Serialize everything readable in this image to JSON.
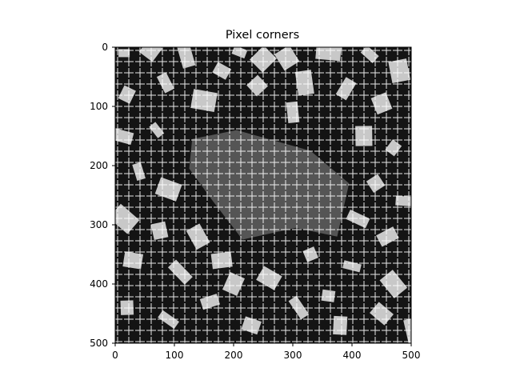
{
  "chart_data": {
    "type": "image",
    "title": "Pixel corners",
    "xlabel": "",
    "ylabel": "",
    "xlim": [
      0,
      500
    ],
    "ylim": [
      500,
      0
    ],
    "y_inverted": true,
    "x_ticks": [
      0,
      100,
      200,
      300,
      400,
      500
    ],
    "y_ticks": [
      0,
      100,
      200,
      300,
      400,
      500
    ],
    "x_tick_labels": [
      "0",
      "100",
      "200",
      "300",
      "400",
      "500"
    ],
    "y_tick_labels": [
      "0",
      "100",
      "200",
      "300",
      "400",
      "500"
    ],
    "grid": false,
    "legend": "none",
    "colors": {
      "background_light": "#c8c8c8",
      "background_dark": "#141414",
      "center_region": "#555555",
      "corner_marks": "#ffffff",
      "axes": "#000000"
    },
    "dark_region_polygon": [
      [
        130,
        155
      ],
      [
        205,
        140
      ],
      [
        330,
        175
      ],
      [
        395,
        230
      ],
      [
        375,
        320
      ],
      [
        305,
        305
      ],
      [
        215,
        325
      ],
      [
        165,
        260
      ],
      [
        125,
        205
      ]
    ],
    "patches": [
      [
        15,
        10
      ],
      [
        60,
        5
      ],
      [
        120,
        15
      ],
      [
        210,
        8
      ],
      [
        290,
        18
      ],
      [
        360,
        10
      ],
      [
        430,
        12
      ],
      [
        480,
        40
      ],
      [
        20,
        80
      ],
      [
        85,
        60
      ],
      [
        150,
        90
      ],
      [
        240,
        65
      ],
      [
        300,
        110
      ],
      [
        390,
        70
      ],
      [
        450,
        95
      ],
      [
        10,
        150
      ],
      [
        70,
        140
      ],
      [
        420,
        150
      ],
      [
        470,
        170
      ],
      [
        40,
        210
      ],
      [
        90,
        240
      ],
      [
        440,
        230
      ],
      [
        490,
        260
      ],
      [
        15,
        290
      ],
      [
        75,
        310
      ],
      [
        410,
        290
      ],
      [
        460,
        320
      ],
      [
        30,
        360
      ],
      [
        110,
        380
      ],
      [
        180,
        360
      ],
      [
        260,
        390
      ],
      [
        330,
        350
      ],
      [
        400,
        370
      ],
      [
        470,
        400
      ],
      [
        20,
        440
      ],
      [
        90,
        460
      ],
      [
        160,
        430
      ],
      [
        230,
        470
      ],
      [
        310,
        440
      ],
      [
        380,
        470
      ],
      [
        450,
        450
      ],
      [
        500,
        480
      ],
      [
        200,
        400
      ],
      [
        140,
        320
      ],
      [
        360,
        420
      ],
      [
        250,
        20
      ],
      [
        320,
        60
      ],
      [
        180,
        40
      ]
    ]
  }
}
